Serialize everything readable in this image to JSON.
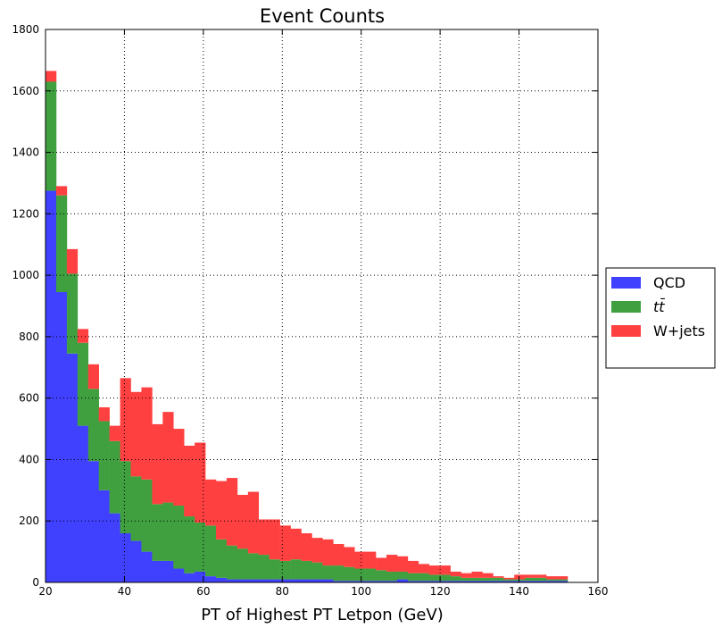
{
  "chart_data": {
    "type": "bar",
    "stacked": true,
    "title": "Event Counts",
    "xlabel": "PT of Highest PT Letpon (GeV)",
    "ylabel": "",
    "xlim": [
      20,
      160
    ],
    "ylim": [
      0,
      1800
    ],
    "x_ticks": [
      "20",
      "40",
      "60",
      "80",
      "100",
      "120",
      "140",
      "160"
    ],
    "y_ticks": [
      "0",
      "200",
      "400",
      "600",
      "800",
      "1000",
      "1200",
      "1400",
      "1600",
      "1800"
    ],
    "grid": true,
    "legend_position": "outside-right",
    "bin_edges": [
      20.0,
      22.7,
      25.4,
      28.1,
      30.8,
      33.5,
      36.2,
      38.9,
      41.6,
      44.3,
      47.0,
      49.7,
      52.4,
      55.1,
      57.8,
      60.5,
      63.2,
      65.9,
      68.6,
      71.3,
      74.0,
      76.7,
      79.4,
      82.1,
      84.8,
      87.5,
      90.2,
      92.9,
      95.6,
      98.3,
      101.0,
      103.7,
      106.4,
      109.1,
      111.8,
      114.5,
      117.2,
      119.9,
      122.6,
      125.3,
      128.0,
      130.7,
      133.4,
      136.1,
      138.8,
      141.5,
      144.2,
      146.9,
      149.6,
      152.3
    ],
    "series": [
      {
        "name": "QCD",
        "color": "#4040ff",
        "values": [
          1275,
          945,
          745,
          510,
          395,
          300,
          225,
          160,
          135,
          100,
          70,
          70,
          45,
          30,
          35,
          20,
          15,
          10,
          10,
          10,
          10,
          10,
          10,
          10,
          10,
          10,
          10,
          5,
          5,
          5,
          5,
          5,
          5,
          10,
          5,
          5,
          5,
          5,
          5,
          5,
          5,
          5,
          5,
          5,
          5,
          5,
          5,
          5,
          5
        ]
      },
      {
        "name": "tt̄",
        "color": "#40a040",
        "values": [
          355,
          315,
          260,
          270,
          235,
          225,
          235,
          235,
          210,
          235,
          185,
          190,
          205,
          185,
          160,
          165,
          125,
          110,
          100,
          85,
          80,
          65,
          60,
          65,
          60,
          55,
          45,
          50,
          45,
          40,
          40,
          35,
          30,
          25,
          25,
          25,
          20,
          20,
          15,
          10,
          10,
          10,
          10,
          5,
          5,
          10,
          10,
          5,
          5
        ]
      },
      {
        "name": "W+jets",
        "color": "#ff4040",
        "values": [
          35,
          30,
          80,
          45,
          80,
          45,
          50,
          270,
          275,
          300,
          260,
          295,
          250,
          230,
          260,
          150,
          190,
          220,
          175,
          200,
          115,
          130,
          115,
          100,
          90,
          80,
          85,
          70,
          65,
          55,
          55,
          40,
          55,
          50,
          40,
          30,
          30,
          30,
          15,
          15,
          20,
          15,
          5,
          5,
          15,
          10,
          10,
          10,
          10
        ]
      }
    ]
  }
}
